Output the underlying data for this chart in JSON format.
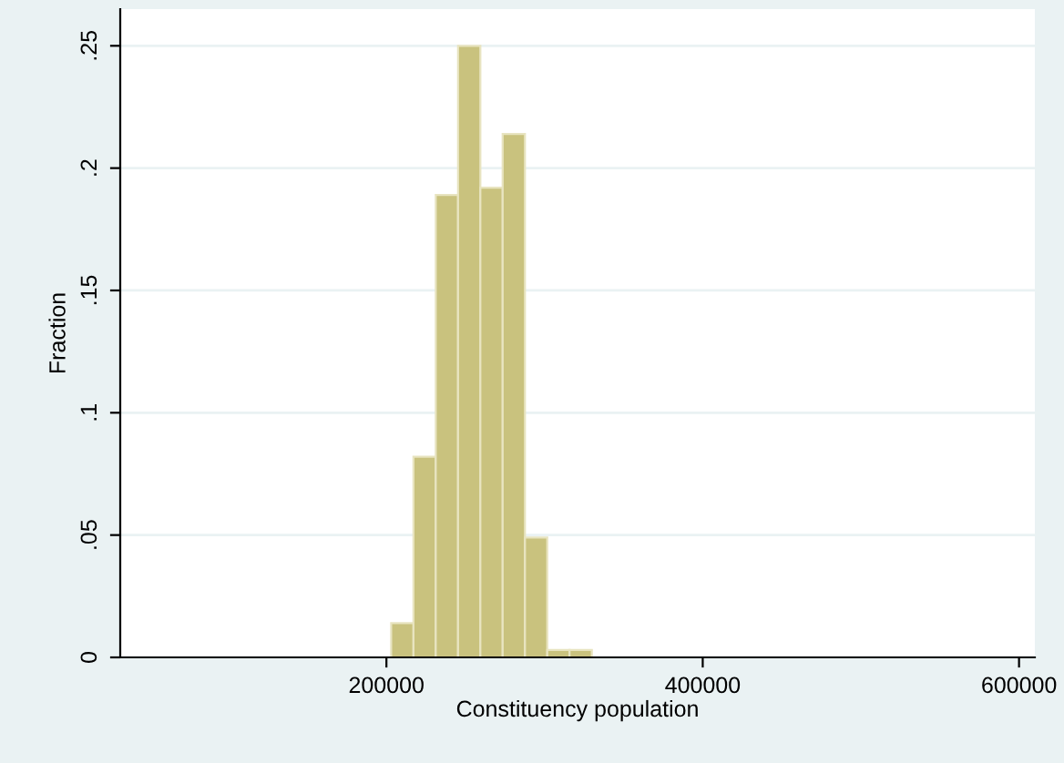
{
  "chart_data": {
    "type": "histogram",
    "xlabel": "Constituency population",
    "ylabel": "Fraction",
    "bins": [
      203000,
      217100,
      231200,
      245300,
      259400,
      273500,
      287600,
      301700,
      315800,
      329900
    ],
    "values": [
      0.014,
      0.082,
      0.189,
      0.25,
      0.192,
      0.214,
      0.049,
      0.003,
      0.003
    ],
    "color": "#c9c27e",
    "xlim": [
      31700,
      610000
    ],
    "xticks": [
      200000,
      400000,
      600000
    ],
    "ylim": [
      0,
      0.265
    ],
    "yticks": [
      {
        "value": 0,
        "label": "0"
      },
      {
        "value": 0.05,
        "label": ".05"
      },
      {
        "value": 0.1,
        "label": ".1"
      },
      {
        "value": 0.15,
        "label": ".15"
      },
      {
        "value": 0.2,
        "label": ".2"
      },
      {
        "value": 0.25,
        "label": ".25"
      }
    ],
    "grid": "y"
  }
}
